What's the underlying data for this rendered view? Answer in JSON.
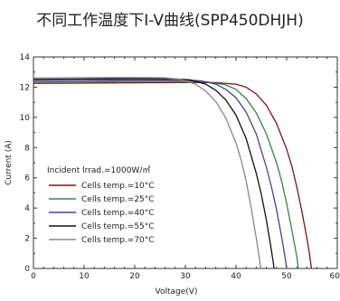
{
  "chart_data": {
    "type": "line",
    "title": "不同工作温度下I-V曲线(SPP450DHJH)",
    "xlabel": "Voltage(V)",
    "ylabel": "Current (A)",
    "xlim": [
      0,
      60
    ],
    "ylim": [
      0,
      14
    ],
    "x_ticks": [
      "0",
      "10",
      "20",
      "30",
      "40",
      "50",
      "60"
    ],
    "y_ticks": [
      "0",
      "2",
      "4",
      "6",
      "8",
      "10",
      "12",
      "14"
    ],
    "grid": false,
    "legend_title": "Incident lrrad.=1000W/㎡",
    "legend_position": "lower-left",
    "series": [
      {
        "name": "Cells temp.=10°C",
        "color": "#7a1318",
        "points": [
          [
            0,
            12.25
          ],
          [
            10,
            12.27
          ],
          [
            20,
            12.29
          ],
          [
            30,
            12.31
          ],
          [
            36,
            12.3
          ],
          [
            40,
            12.2
          ],
          [
            42,
            12.0
          ],
          [
            44,
            11.55
          ],
          [
            46,
            10.8
          ],
          [
            48,
            9.6
          ],
          [
            50,
            7.9
          ],
          [
            51,
            6.8
          ],
          [
            52,
            5.4
          ],
          [
            53,
            3.8
          ],
          [
            54,
            2.0
          ],
          [
            54.5,
            1.0
          ],
          [
            54.9,
            0
          ]
        ]
      },
      {
        "name": "Cells temp.=25°C",
        "color": "#2e8b3a",
        "points": [
          [
            0,
            12.34
          ],
          [
            10,
            12.36
          ],
          [
            20,
            12.38
          ],
          [
            30,
            12.39
          ],
          [
            34,
            12.36
          ],
          [
            38,
            12.15
          ],
          [
            40,
            11.85
          ],
          [
            42,
            11.25
          ],
          [
            44,
            10.3
          ],
          [
            46,
            8.9
          ],
          [
            48,
            7.0
          ],
          [
            49,
            5.8
          ],
          [
            50,
            4.3
          ],
          [
            51,
            2.6
          ],
          [
            52,
            0.8
          ],
          [
            52.3,
            0
          ]
        ]
      },
      {
        "name": "Cells temp.=40°C",
        "color": "#4a3fa0",
        "points": [
          [
            0,
            12.43
          ],
          [
            10,
            12.45
          ],
          [
            20,
            12.47
          ],
          [
            30,
            12.47
          ],
          [
            33,
            12.42
          ],
          [
            36,
            12.2
          ],
          [
            38,
            11.85
          ],
          [
            40,
            11.3
          ],
          [
            42,
            10.35
          ],
          [
            44,
            8.9
          ],
          [
            46,
            6.7
          ],
          [
            47,
            5.4
          ],
          [
            48,
            3.9
          ],
          [
            49,
            2.1
          ],
          [
            49.8,
            0.5
          ],
          [
            50.0,
            0
          ]
        ]
      },
      {
        "name": "Cells temp.=55°C",
        "color": "#111111",
        "points": [
          [
            0,
            12.52
          ],
          [
            10,
            12.54
          ],
          [
            20,
            12.56
          ],
          [
            28,
            12.55
          ],
          [
            31,
            12.48
          ],
          [
            34,
            12.2
          ],
          [
            36,
            11.8
          ],
          [
            38,
            11.15
          ],
          [
            40,
            10.15
          ],
          [
            42,
            8.6
          ],
          [
            44,
            6.3
          ],
          [
            45,
            4.9
          ],
          [
            46,
            3.2
          ],
          [
            46.8,
            1.6
          ],
          [
            47.4,
            0.3
          ],
          [
            47.5,
            0
          ]
        ]
      },
      {
        "name": "Cells temp.=70°C",
        "color": "#888888",
        "points": [
          [
            0,
            12.61
          ],
          [
            10,
            12.63
          ],
          [
            20,
            12.64
          ],
          [
            26,
            12.62
          ],
          [
            29,
            12.52
          ],
          [
            32,
            12.2
          ],
          [
            34,
            11.75
          ],
          [
            36,
            11.05
          ],
          [
            38,
            9.95
          ],
          [
            40,
            8.3
          ],
          [
            41,
            7.2
          ],
          [
            42,
            5.8
          ],
          [
            43,
            4.0
          ],
          [
            44,
            2.0
          ],
          [
            44.6,
            0.7
          ],
          [
            44.9,
            0
          ]
        ]
      }
    ]
  }
}
